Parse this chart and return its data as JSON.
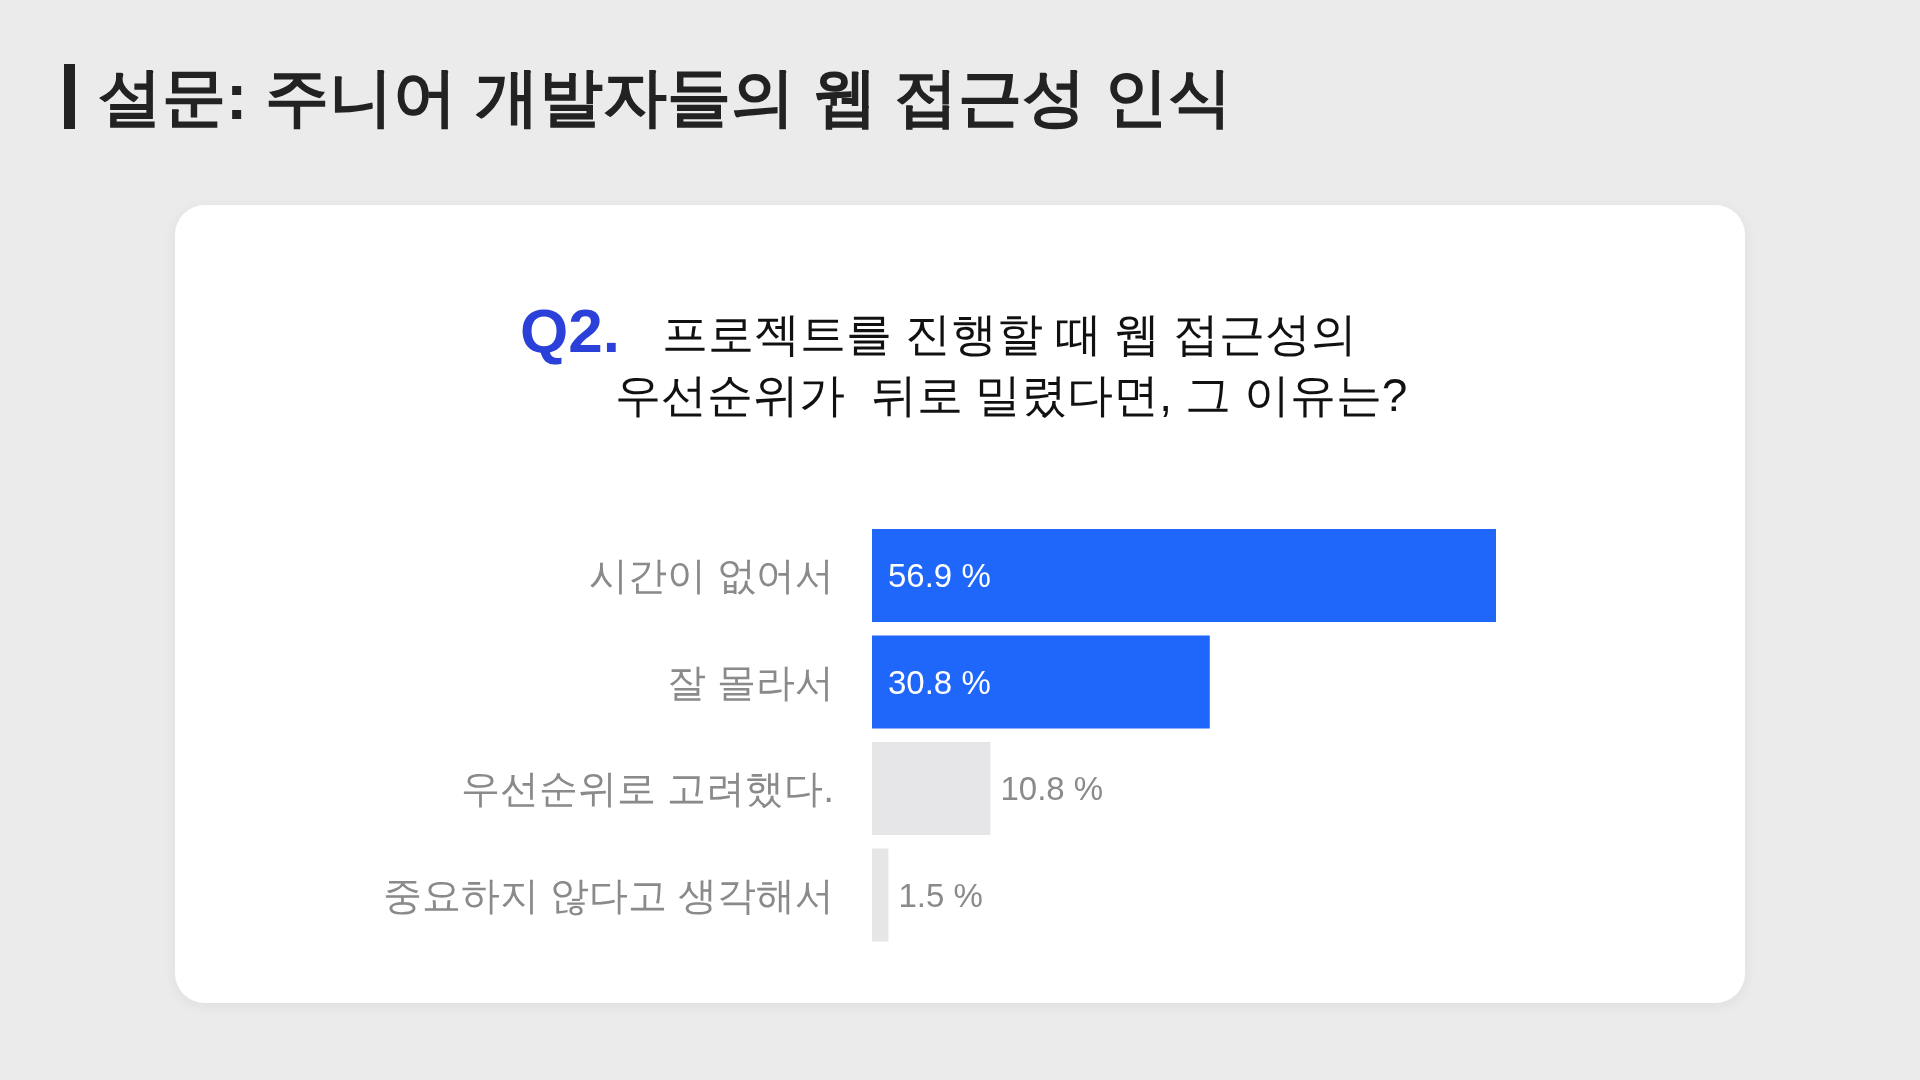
{
  "chart_data": {
    "type": "bar",
    "orientation": "horizontal",
    "title": "설문: 주니어 개발자들의 웹 접근성 인식",
    "subtitle": "Q2. 프로젝트를 진행할 때 웹 접근성의\n우선순위가  뒤로 밀렸다면, 그 이유는?",
    "categories": [
      "시간이 없어서",
      "잘 몰라서",
      "우선순위로 고려했다.",
      "중요하지 않다고 생각해서"
    ],
    "values": [
      56.9,
      30.8,
      10.8,
      1.5
    ],
    "colors": [
      "#1f66fb",
      "#1f66fb",
      "#e6e6e8",
      "#e6e6e8"
    ],
    "value_labels": [
      "56.9 %",
      "30.8 %",
      "10.8 %",
      "1.5 %"
    ]
  }
}
